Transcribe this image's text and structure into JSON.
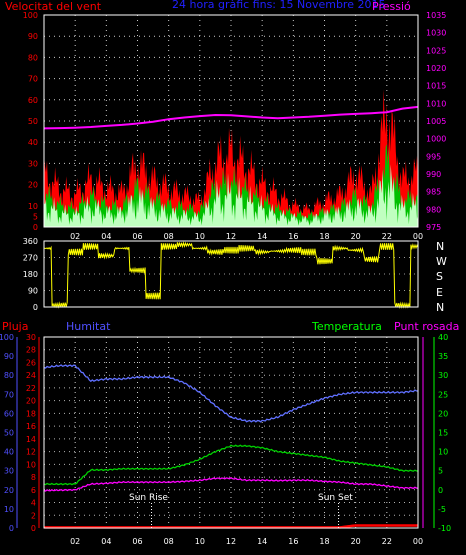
{
  "header": {
    "wind_label": "Velocitat del vent",
    "title": "24 hora gràfic fins: 15 Novembre 2015",
    "pressure_label": "Pressió"
  },
  "lower_header": {
    "rain_label": "Pluja",
    "humidity_label": "Humitat",
    "temperature_label": "Temperatura",
    "dewpoint_label": "Punt rosada"
  },
  "direction_letters": [
    "N",
    "W",
    "S",
    "E",
    "N"
  ],
  "annotations": {
    "sunrise": "Sun Rise",
    "sunset": "Sun Set"
  },
  "colors": {
    "wind_gust": "#ff0000",
    "wind_speed": "#00c000",
    "wind_avg": "#c0ffc0",
    "pressure": "#ff00ff",
    "direction": "#ffff00",
    "humidity": "#6070ff",
    "temperature": "#00d000",
    "dewpoint": "#ff00ff",
    "rain": "#ff0000",
    "wind_axis": "#ff0000",
    "pressure_axis": "#ff00ff",
    "rain_axis": "#ff0000",
    "humidity_axis": "#5050ff",
    "temp_axis": "#00ff00",
    "title": "#2020ff",
    "direction_axis": "#ffffff"
  },
  "chart_data": [
    {
      "type": "area",
      "name": "wind-pressure",
      "x_ticks": [
        "02",
        "04",
        "06",
        "08",
        "10",
        "12",
        "14",
        "16",
        "18",
        "20",
        "22",
        "00"
      ],
      "left_axis": {
        "ticks": [
          0,
          5,
          10,
          20,
          30,
          40,
          50,
          60,
          70,
          80,
          90,
          100
        ],
        "ylim": [
          0,
          100
        ]
      },
      "right_axis": {
        "ticks": [
          975,
          980,
          985,
          990,
          995,
          1000,
          1005,
          1010,
          1015,
          1020,
          1025,
          1030,
          1035
        ],
        "ylim": [
          975,
          1035
        ]
      },
      "x": [
        0,
        1,
        2,
        3,
        4,
        5,
        6,
        7,
        8,
        9,
        10,
        11,
        12,
        13,
        14,
        15,
        16,
        17,
        18,
        19,
        20,
        21,
        22,
        23,
        24
      ],
      "series": [
        {
          "id": "gust",
          "axis": "left",
          "values": [
            25,
            18,
            15,
            22,
            18,
            16,
            30,
            22,
            18,
            15,
            12,
            30,
            35,
            28,
            20,
            15,
            10,
            8,
            12,
            15,
            25,
            15,
            55,
            22,
            25
          ]
        },
        {
          "id": "speed",
          "axis": "left",
          "values": [
            15,
            10,
            8,
            14,
            10,
            9,
            18,
            13,
            10,
            9,
            7,
            18,
            20,
            16,
            12,
            8,
            6,
            5,
            7,
            9,
            14,
            9,
            30,
            12,
            14
          ]
        },
        {
          "id": "average",
          "axis": "left",
          "values": [
            10,
            6,
            5,
            9,
            6,
            6,
            12,
            8,
            6,
            5,
            4,
            12,
            14,
            11,
            8,
            5,
            4,
            3,
            5,
            6,
            9,
            6,
            20,
            8,
            9
          ]
        },
        {
          "id": "pressure",
          "axis": "right",
          "values": [
            1002.9,
            1003.0,
            1003.1,
            1003.3,
            1003.6,
            1003.9,
            1004.3,
            1004.8,
            1005.5,
            1006.0,
            1006.4,
            1006.7,
            1006.6,
            1006.3,
            1006.0,
            1005.8,
            1006.0,
            1006.2,
            1006.5,
            1006.8,
            1007.0,
            1007.2,
            1007.5,
            1008.5,
            1009.0
          ]
        }
      ]
    },
    {
      "type": "line",
      "name": "wind-direction",
      "y_ticks": [
        0,
        90,
        180,
        270,
        360
      ],
      "ylim": [
        0,
        360
      ],
      "x": [
        0,
        1,
        2,
        3,
        4,
        5,
        6,
        7,
        8,
        9,
        10,
        11,
        12,
        13,
        14,
        15,
        16,
        17,
        18,
        19,
        20,
        21,
        22,
        23,
        24
      ],
      "series": [
        {
          "id": "direction",
          "values": [
            320,
            10,
            300,
            330,
            280,
            320,
            200,
            60,
            330,
            340,
            320,
            300,
            310,
            320,
            300,
            305,
            310,
            300,
            250,
            320,
            310,
            260,
            330,
            5,
            330
          ]
        }
      ]
    },
    {
      "type": "line",
      "name": "humidity-temp-rain",
      "x_ticks": [
        "02",
        "04",
        "06",
        "08",
        "10",
        "12",
        "14",
        "16",
        "18",
        "20",
        "22",
        "00"
      ],
      "rain_axis": {
        "ticks": [
          0,
          2,
          4,
          6,
          8,
          10,
          12,
          14,
          16,
          18,
          20,
          22,
          24,
          26,
          28,
          30
        ],
        "ylim": [
          0,
          30
        ]
      },
      "humidity_axis": {
        "ticks": [
          0,
          10,
          20,
          30,
          40,
          50,
          60,
          70,
          80,
          90,
          100
        ],
        "ylim": [
          0,
          100
        ]
      },
      "temp_axis": {
        "ticks": [
          -10,
          -5,
          0,
          5,
          10,
          15,
          20,
          25,
          30,
          35,
          40
        ],
        "ylim": [
          -10,
          40
        ]
      },
      "x": [
        0,
        1,
        2,
        3,
        4,
        5,
        6,
        7,
        8,
        9,
        10,
        11,
        12,
        13,
        14,
        15,
        16,
        17,
        18,
        19,
        20,
        21,
        22,
        23,
        24
      ],
      "series": [
        {
          "id": "humidity",
          "axis": "humidity",
          "values": [
            84,
            85,
            85,
            77,
            78,
            78,
            79,
            79,
            79,
            76,
            71,
            64,
            58,
            56,
            56,
            58,
            62,
            65,
            68,
            70,
            71,
            71,
            71,
            71,
            72
          ]
        },
        {
          "id": "temperature",
          "axis": "temp",
          "values": [
            1.5,
            1.5,
            1.5,
            5.2,
            5.2,
            5.5,
            5.5,
            5.5,
            5.5,
            6.5,
            8,
            10,
            11.5,
            11.5,
            11,
            10,
            9.5,
            9,
            8.5,
            7.5,
            7,
            6.5,
            6,
            5,
            5
          ]
        },
        {
          "id": "dewpoint",
          "axis": "temp",
          "values": [
            -0.2,
            -0.1,
            0,
            1.5,
            1.7,
            2,
            2,
            2,
            2,
            2.2,
            2.5,
            3,
            3,
            2.5,
            2.5,
            2.4,
            2.5,
            2.5,
            2.2,
            2,
            1.5,
            1.5,
            1,
            0.5,
            0.5
          ]
        },
        {
          "id": "rain",
          "axis": "rain",
          "values": [
            0.1,
            0.1,
            0.1,
            0.1,
            0.1,
            0.1,
            0.1,
            0.1,
            0.1,
            0.1,
            0.1,
            0.1,
            0.1,
            0.1,
            0.1,
            0.1,
            0.1,
            0.1,
            0.1,
            0.1,
            0.4,
            0.4,
            0.4,
            0.4,
            0.4
          ]
        }
      ],
      "sunrise_x": 6.9,
      "sunset_x": 18.9
    }
  ]
}
